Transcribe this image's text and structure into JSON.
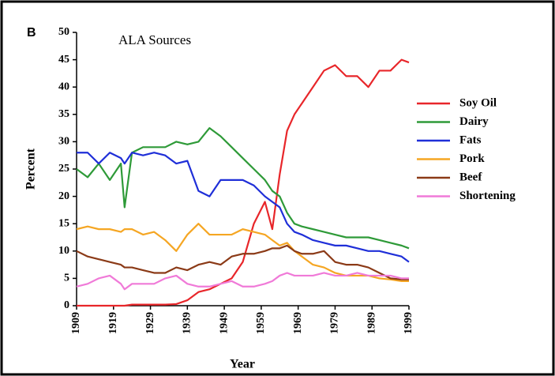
{
  "chart_data": {
    "type": "line",
    "panel_label": "B",
    "title": "ALA Sources",
    "y_label": "Percent",
    "x_label": "Year",
    "x": [
      1909,
      1912,
      1915,
      1918,
      1921,
      1922,
      1924,
      1927,
      1930,
      1933,
      1936,
      1939,
      1942,
      1945,
      1948,
      1951,
      1954,
      1957,
      1960,
      1962,
      1964,
      1966,
      1968,
      1970,
      1973,
      1976,
      1979,
      1982,
      1985,
      1988,
      1991,
      1994,
      1997,
      1999
    ],
    "series": [
      {
        "name": "Soy Oil",
        "color": "#e8262a",
        "values": [
          0,
          0,
          0,
          0,
          0,
          0,
          0.2,
          0.2,
          0.2,
          0.2,
          0.3,
          1,
          2.5,
          3,
          4,
          5,
          8,
          15,
          19,
          14,
          24,
          32,
          35,
          37,
          40,
          43,
          44,
          42,
          42,
          40,
          43,
          43,
          45,
          44.5
        ]
      },
      {
        "name": "Dairy",
        "color": "#2e9a38",
        "values": [
          25,
          23.5,
          26,
          23,
          26,
          18,
          28,
          29,
          29,
          29,
          30,
          29.5,
          30,
          32.5,
          31,
          29,
          27,
          25,
          23,
          21,
          20,
          17,
          15,
          14.5,
          14,
          13.5,
          13,
          12.5,
          12.5,
          12.5,
          12,
          11.5,
          11,
          10.5
        ]
      },
      {
        "name": "Fats",
        "color": "#1f2fd8",
        "values": [
          28,
          28,
          26,
          28,
          27,
          26,
          28,
          27.5,
          28,
          27.5,
          26,
          26.5,
          21,
          20,
          23,
          23,
          23,
          22,
          20,
          19,
          18,
          15,
          13.5,
          13,
          12,
          11.5,
          11,
          11,
          10.5,
          10,
          10,
          9.5,
          9,
          8
        ]
      },
      {
        "name": "Pork",
        "color": "#f5a623",
        "values": [
          14,
          14.5,
          14,
          14,
          13.5,
          14,
          14,
          13,
          13.5,
          12,
          10,
          13,
          15,
          13,
          13,
          13,
          14,
          13.5,
          13,
          12,
          11,
          11.5,
          10,
          9,
          7.5,
          7,
          6,
          5.5,
          5.5,
          5.5,
          5,
          4.8,
          4.5,
          4.5
        ]
      },
      {
        "name": "Beef",
        "color": "#8b3a17",
        "values": [
          10,
          9,
          8.5,
          8,
          7.5,
          7,
          7,
          6.5,
          6,
          6,
          7,
          6.5,
          7.5,
          8,
          7.5,
          9,
          9.5,
          9.5,
          10,
          10.5,
          10.5,
          11,
          10,
          9.5,
          9.5,
          10,
          8,
          7.5,
          7.5,
          7,
          6,
          5,
          4.8,
          4.8
        ]
      },
      {
        "name": "Shortening",
        "color": "#f07ad8",
        "values": [
          3.5,
          4,
          5,
          5.5,
          4,
          3,
          4,
          4,
          4,
          5,
          5.5,
          4,
          3.5,
          3.5,
          4,
          4.5,
          3.5,
          3.5,
          4,
          4.5,
          5.5,
          6,
          5.5,
          5.5,
          5.5,
          6,
          5.5,
          5.5,
          6,
          5.5,
          5.5,
          5.5,
          5,
          5
        ]
      }
    ],
    "xlim": [
      1909,
      1999
    ],
    "xticks": [
      1909,
      1919,
      1929,
      1939,
      1949,
      1959,
      1969,
      1979,
      1989,
      1999
    ],
    "ylim": [
      0,
      50
    ],
    "yticks": [
      0,
      5,
      10,
      15,
      20,
      25,
      30,
      35,
      40,
      45,
      50
    ],
    "legend": "right"
  }
}
